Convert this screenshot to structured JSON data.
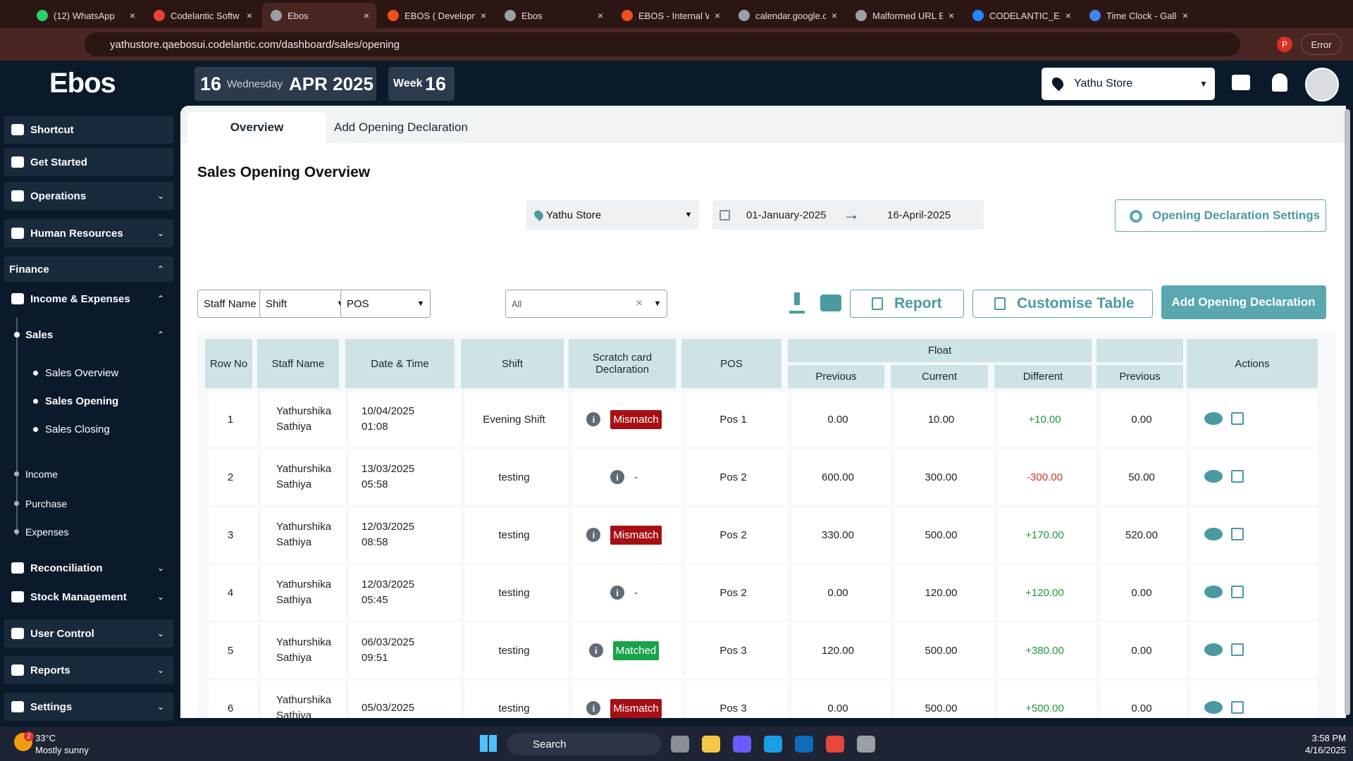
{
  "browser": {
    "tabs": [
      "(12) WhatsApp",
      "Codelantic Softw",
      "Ebos",
      "EBOS ( Developm",
      "Ebos",
      "EBOS - Internal W",
      "calendar.google.c",
      "Malformed URL E",
      "CODELANTIC_EBO",
      "Time Clock - Galle"
    ],
    "url": "yathustore.qaebosui.codelantic.com/dashboard/sales/opening",
    "profile": "P",
    "status": "Error"
  },
  "app": {
    "logo": "Ebos",
    "day": "16",
    "weekday": "Wednesday",
    "month_year": "APR 2025",
    "week_label": "Week",
    "week": "16",
    "store": "Yathu Store"
  },
  "sidebar": {
    "top": [
      "Shortcut",
      "Get Started",
      "Operations",
      "Human Resources"
    ],
    "finance": "Finance",
    "income_expenses": "Income & Expenses",
    "sales": "Sales",
    "sales_children": [
      "Sales Overview",
      "Sales Opening",
      "Sales Closing"
    ],
    "others": [
      "Income",
      "Purchase",
      "Expenses"
    ],
    "bottom": [
      "Reconciliation",
      "Stock Management",
      "User Control",
      "Reports",
      "Settings"
    ]
  },
  "page": {
    "tabs": [
      "Overview",
      "Add Opening Declaration"
    ],
    "title": "Sales Opening Overview",
    "store_filter": "Yathu Store",
    "date_from": "01-January-2025",
    "date_to": "16-April-2025",
    "settings_button": "Opening Declaration Settings",
    "filters": [
      "Staff Name",
      "Shift",
      "POS",
      "All"
    ],
    "buttons": [
      "Report",
      "Customise Table",
      "Add Opening Declaration"
    ]
  },
  "table": {
    "columns": [
      "Row No",
      "Staff Name",
      "Date & Time",
      "Shift",
      "Scratch card Declaration",
      "POS",
      "Previous",
      "Current",
      "Different",
      "Previous",
      "Actions"
    ],
    "group": "Float",
    "rows": [
      {
        "row_no": "1",
        "staff": "Yathurshika Sathiya",
        "date_time": "10/04/2025 01:08",
        "shift": "Evening Shift",
        "scratch": {
          "label": "Mismatch",
          "color": "#a80f14"
        },
        "pos": "Pos 1",
        "previous": "0.00",
        "current": "10.00",
        "different": {
          "text": "+10.00",
          "color": "#1b9a3c"
        },
        "previous_2": "0.00"
      },
      {
        "row_no": "2",
        "staff": "Yathurshika Sathiya",
        "date_time": "13/03/2025 05:58",
        "shift": "testing",
        "scratch": {
          "label": "-",
          "color": null
        },
        "pos": "Pos 2",
        "previous": "600.00",
        "current": "300.00",
        "different": {
          "text": "-300.00",
          "color": "#d32f2f"
        },
        "previous_2": "50.00"
      },
      {
        "row_no": "3",
        "staff": "Yathurshika Sathiya",
        "date_time": "12/03/2025 08:58",
        "shift": "testing",
        "scratch": {
          "label": "Mismatch",
          "color": "#a80f14"
        },
        "pos": "Pos 2",
        "previous": "330.00",
        "current": "500.00",
        "different": {
          "text": "+170.00",
          "color": "#1b9a3c"
        },
        "previous_2": "520.00"
      },
      {
        "row_no": "4",
        "staff": "Yathurshika Sathiya",
        "date_time": "12/03/2025 05:45",
        "shift": "testing",
        "scratch": {
          "label": "-",
          "color": null
        },
        "pos": "Pos 2",
        "previous": "0.00",
        "current": "120.00",
        "different": {
          "text": "+120.00",
          "color": "#1b9a3c"
        },
        "previous_2": "0.00"
      },
      {
        "row_no": "5",
        "staff": "Yathurshika Sathiya",
        "date_time": "06/03/2025 09:51",
        "shift": "testing",
        "scratch": {
          "label": "Matched",
          "color": "#1aa34a"
        },
        "pos": "Pos 3",
        "previous": "120.00",
        "current": "500.00",
        "different": {
          "text": "+380.00",
          "color": "#1b9a3c"
        },
        "previous_2": "0.00"
      },
      {
        "row_no": "6",
        "staff": "Yathurshika Sathiya",
        "date_time": "05/03/2025",
        "shift": "testing",
        "scratch": {
          "label": "Mismatch",
          "color": "#a80f14"
        },
        "pos": "Pos 3",
        "previous": "0.00",
        "current": "500.00",
        "different": {
          "text": "+500.00",
          "color": "#1b9a3c"
        },
        "previous_2": "0.00"
      }
    ]
  },
  "taskbar": {
    "badge": "2",
    "temp": "33°C",
    "condition": "Mostly sunny",
    "search": "Search",
    "time": "3:58 PM",
    "date": "4/16/2025"
  }
}
